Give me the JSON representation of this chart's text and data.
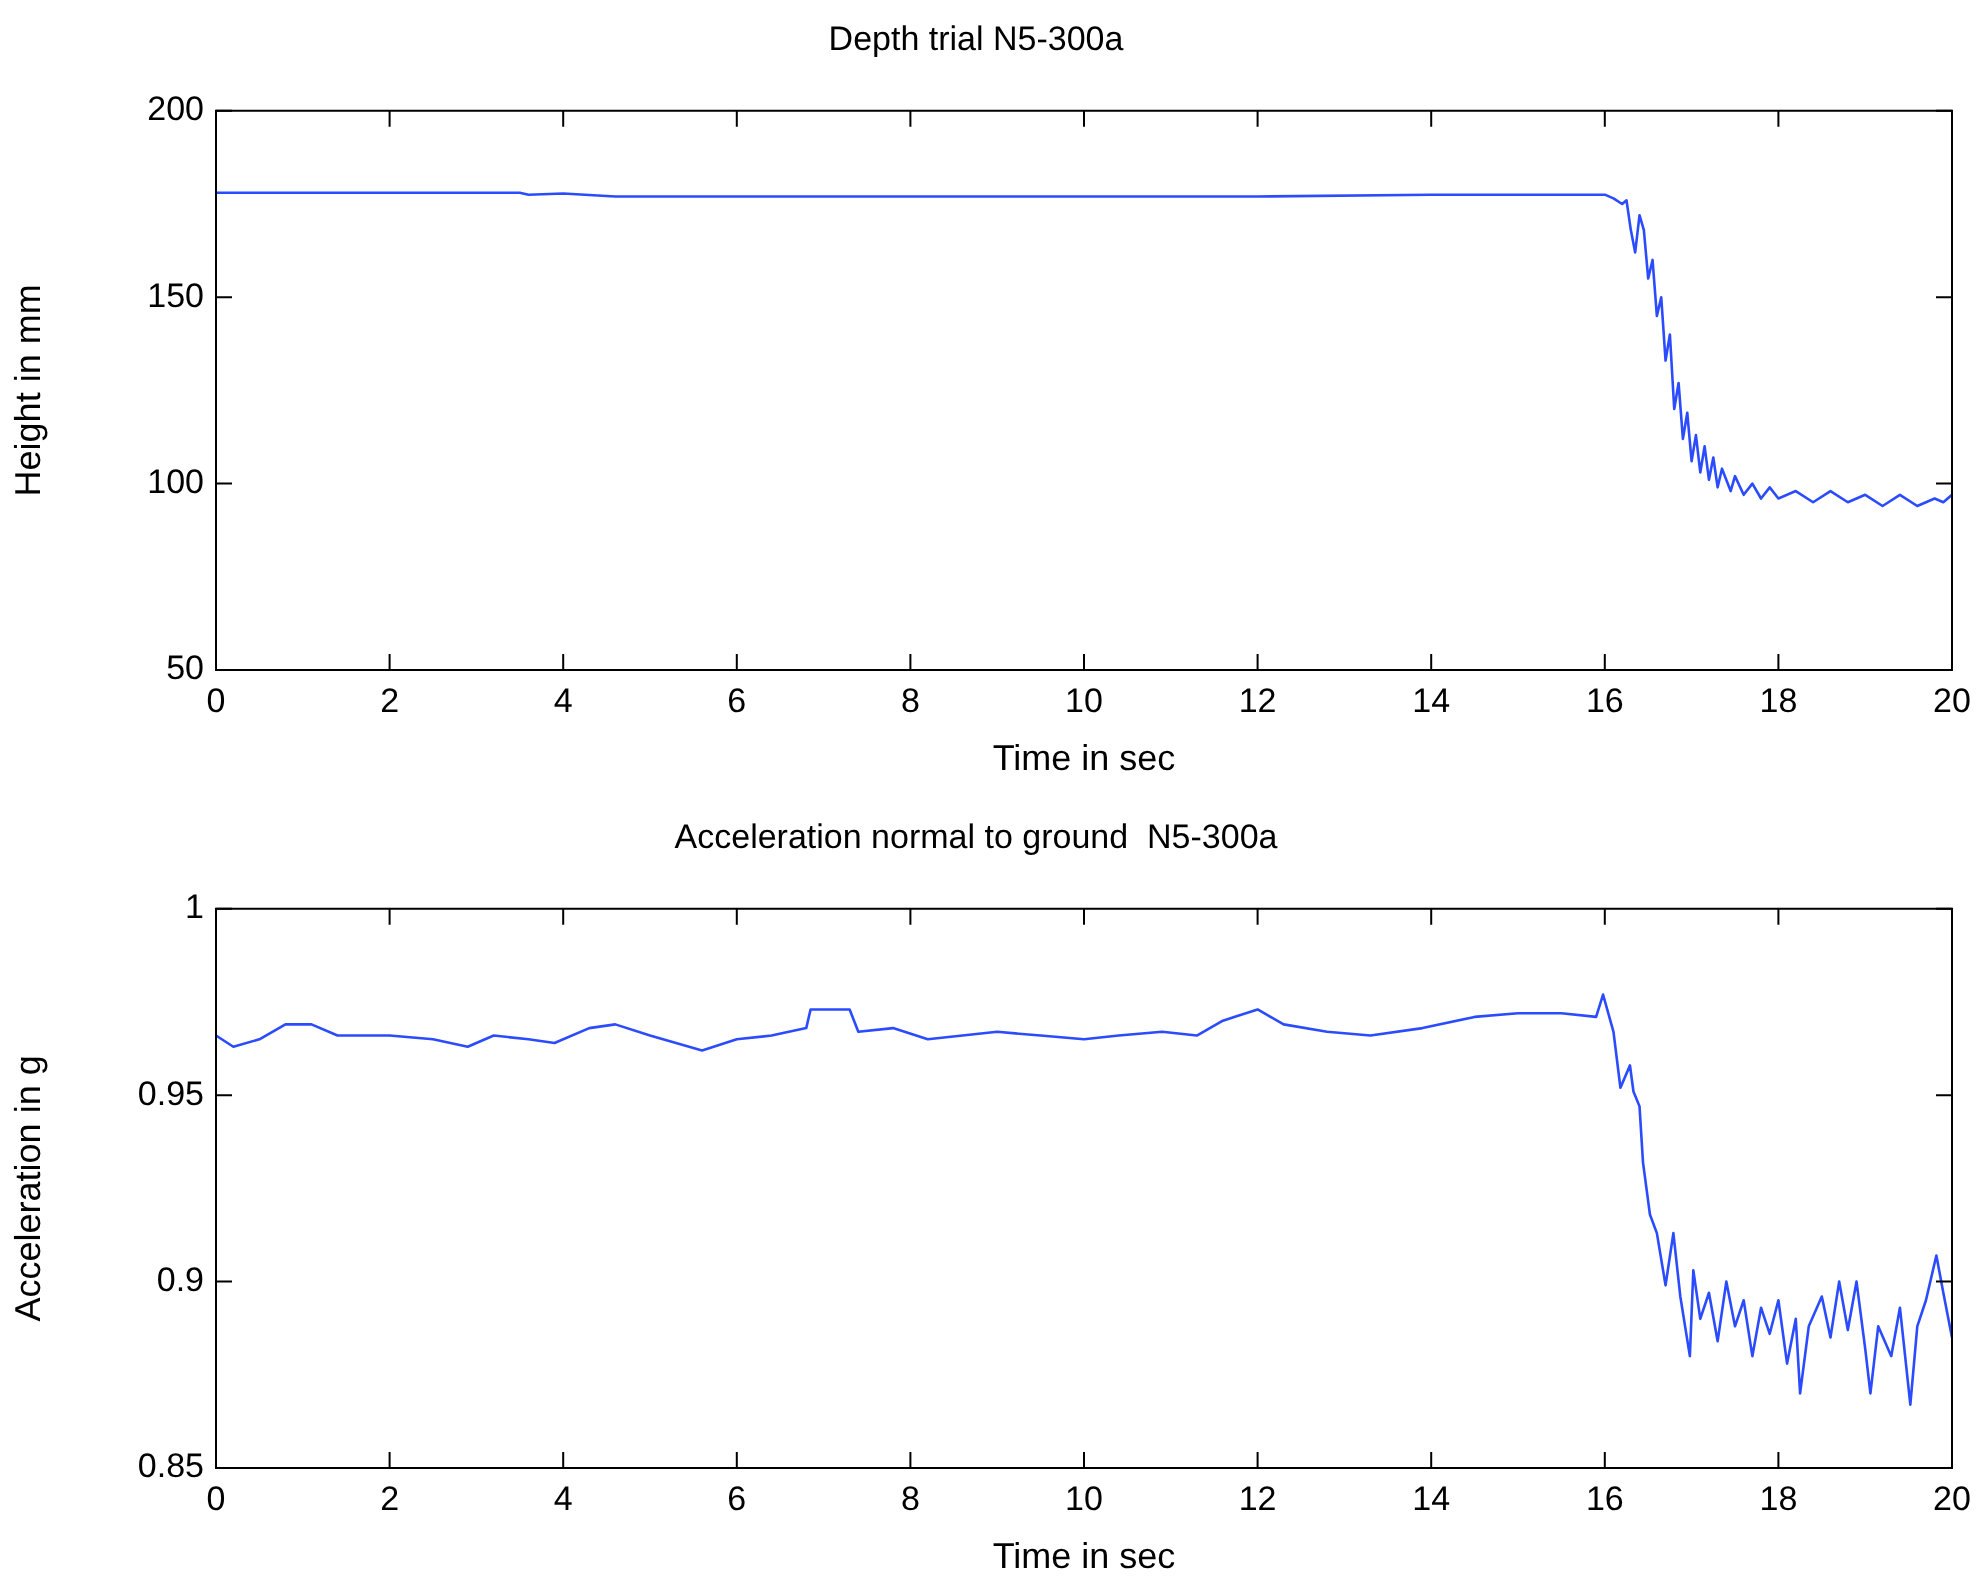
{
  "chart_data": [
    {
      "type": "line",
      "title": "Depth trial N5-300a",
      "xlabel": "Time in sec",
      "ylabel": "Height in mm",
      "xlim": [
        0,
        20
      ],
      "xticks": [
        0,
        2,
        4,
        6,
        8,
        10,
        12,
        14,
        16,
        18,
        20
      ],
      "ylim": [
        50,
        200
      ],
      "yticks": [
        50,
        100,
        150,
        200
      ],
      "grid": false,
      "legend": false,
      "marker": "none",
      "line_style": "solid",
      "series": [
        {
          "color": "#2b4bff",
          "x": [
            0,
            2,
            3.5,
            3.6,
            4,
            4.6,
            8,
            12,
            14,
            15.5,
            16.0,
            16.1,
            16.2,
            16.25,
            16.3,
            16.35,
            16.4,
            16.45,
            16.5,
            16.55,
            16.6,
            16.65,
            16.7,
            16.75,
            16.8,
            16.85,
            16.9,
            16.95,
            17.0,
            17.05,
            17.1,
            17.15,
            17.2,
            17.25,
            17.3,
            17.35,
            17.45,
            17.5,
            17.6,
            17.7,
            17.8,
            17.9,
            18.0,
            18.2,
            18.4,
            18.6,
            18.8,
            19.0,
            19.2,
            19.4,
            19.6,
            19.8,
            19.9,
            20
          ],
          "values": [
            178,
            178,
            178,
            177.5,
            177.8,
            177,
            177,
            177,
            177.5,
            177.5,
            177.5,
            176.5,
            175,
            176,
            168,
            162,
            172,
            168,
            155,
            160,
            145,
            150,
            133,
            140,
            120,
            127,
            112,
            119,
            106,
            113,
            103,
            110,
            101,
            107,
            99,
            104,
            98,
            102,
            97,
            100,
            96,
            99,
            96,
            98,
            95,
            98,
            95,
            97,
            94,
            97,
            94,
            96,
            95,
            97
          ]
        }
      ]
    },
    {
      "type": "line",
      "title": "Acceleration normal to ground  N5-300a",
      "xlabel": "Time in sec",
      "ylabel": "Acceleration in g",
      "xlim": [
        0,
        20
      ],
      "xticks": [
        0,
        2,
        4,
        6,
        8,
        10,
        12,
        14,
        16,
        18,
        20
      ],
      "ylim": [
        0.85,
        1
      ],
      "yticks": [
        0.85,
        0.9,
        0.95,
        1
      ],
      "grid": false,
      "legend": false,
      "marker": "none",
      "line_style": "solid",
      "series": [
        {
          "color": "#2b4bff",
          "x": [
            0,
            0.2,
            0.5,
            0.8,
            1.1,
            1.4,
            2,
            2.5,
            2.9,
            3.2,
            3.6,
            3.9,
            4.3,
            4.6,
            5.0,
            5.3,
            5.6,
            6.0,
            6.4,
            6.8,
            6.85,
            7.1,
            7.3,
            7.4,
            7.8,
            8.2,
            8.6,
            9.0,
            9.5,
            10,
            10.4,
            10.9,
            11.3,
            11.6,
            12.0,
            12.3,
            12.8,
            13.3,
            13.9,
            14.5,
            15,
            15.5,
            15.9,
            15.98,
            16.1,
            16.18,
            16.29,
            16.33,
            16.4,
            16.44,
            16.52,
            16.6,
            16.7,
            16.79,
            16.87,
            16.98,
            17.02,
            17.1,
            17.2,
            17.3,
            17.4,
            17.5,
            17.6,
            17.7,
            17.8,
            17.9,
            18.0,
            18.1,
            18.2,
            18.25,
            18.35,
            18.5,
            18.6,
            18.7,
            18.8,
            18.9,
            19.0,
            19.06,
            19.15,
            19.3,
            19.4,
            19.52,
            19.6,
            19.7,
            19.82,
            19.9,
            20
          ],
          "values": [
            0.966,
            0.963,
            0.965,
            0.969,
            0.969,
            0.966,
            0.966,
            0.965,
            0.963,
            0.966,
            0.965,
            0.964,
            0.968,
            0.969,
            0.966,
            0.964,
            0.962,
            0.965,
            0.966,
            0.968,
            0.973,
            0.973,
            0.973,
            0.967,
            0.968,
            0.965,
            0.966,
            0.967,
            0.966,
            0.965,
            0.966,
            0.967,
            0.966,
            0.97,
            0.973,
            0.969,
            0.967,
            0.966,
            0.968,
            0.971,
            0.972,
            0.972,
            0.971,
            0.977,
            0.967,
            0.952,
            0.958,
            0.951,
            0.947,
            0.932,
            0.918,
            0.913,
            0.899,
            0.913,
            0.896,
            0.88,
            0.903,
            0.89,
            0.897,
            0.884,
            0.9,
            0.888,
            0.895,
            0.88,
            0.893,
            0.886,
            0.895,
            0.878,
            0.89,
            0.87,
            0.888,
            0.896,
            0.885,
            0.9,
            0.887,
            0.9,
            0.882,
            0.87,
            0.888,
            0.88,
            0.893,
            0.867,
            0.888,
            0.895,
            0.907,
            0.897,
            0.885
          ]
        }
      ]
    }
  ]
}
